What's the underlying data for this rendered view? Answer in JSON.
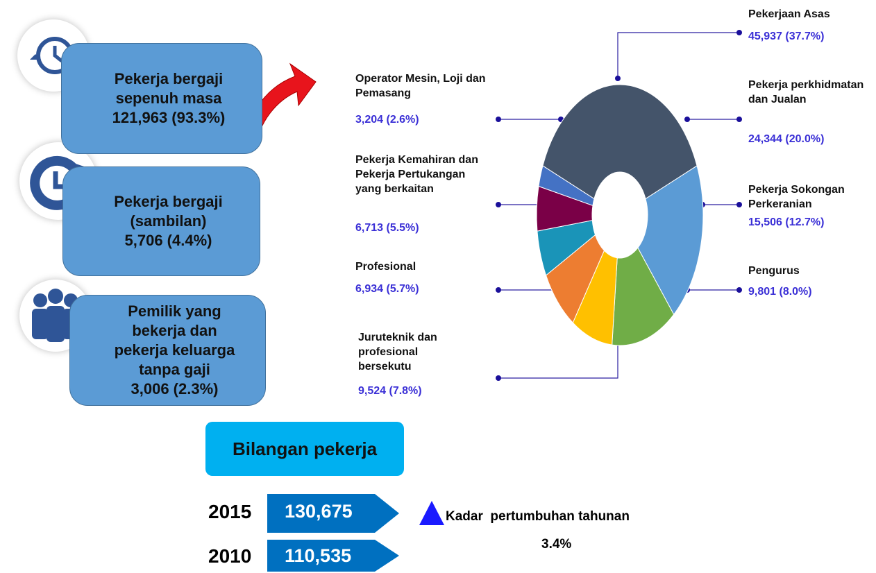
{
  "employment_types": [
    {
      "label": "Pekerja bergaji sepenuh masa",
      "value_label": "121,963 (93.3%)"
    },
    {
      "label": "Pekerja bergaji (sambilan)",
      "value_label": "5,706 (4.4%)"
    },
    {
      "label": "Pemilik yang bekerja dan pekerja keluarga tanpa gaji",
      "value_label": "3,006 (2.3%)"
    }
  ],
  "chart_data": {
    "type": "pie",
    "categories": [
      "Pekerjaan Asas",
      "Pekerja perkhidmatan dan Jualan",
      "Pekerja Sokongan Perkeranian",
      "Pengurus",
      "Juruteknik dan profesional bersekutu",
      "Profesional",
      "Pekerja Kemahiran dan Pekerja Pertukangan yang berkaitan",
      "Operator Mesin, Loji dan Pemasang"
    ],
    "values": [
      45937,
      24344,
      15506,
      9801,
      9524,
      6934,
      6713,
      3204
    ],
    "value_labels": [
      "45,937 (37.7%)",
      "24,344 (20.0%)",
      "15,506 (12.7%)",
      "9,801 (8.0%)",
      "9,524 (7.8%)",
      "6,934 (5.7%)",
      "6,713 (5.5%)",
      "3,204 (2.6%)"
    ],
    "colors": [
      "#44546a",
      "#5b9bd5",
      "#70ad47",
      "#ffc000",
      "#ed7d31",
      "#1a94b8",
      "#7a0047",
      "#4472c4"
    ]
  },
  "summary": {
    "title": "Bilangan pekerja",
    "rows": [
      {
        "year": "2015",
        "value": "130,675"
      },
      {
        "year": "2010",
        "value": "110,535"
      }
    ],
    "growth_label": "Kadar  pertumbuhan tahunan",
    "growth_value": "3.4%"
  }
}
